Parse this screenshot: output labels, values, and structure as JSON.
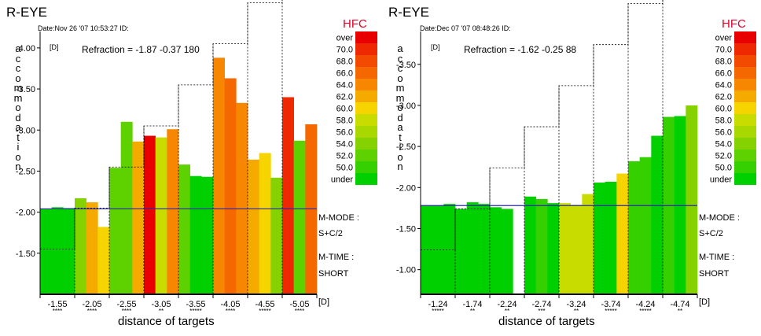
{
  "hfc_title": "HFC",
  "hfc_legend": [
    {
      "label": "over",
      "color": "#e80000"
    },
    {
      "label": "70.0",
      "color": "#ee2800"
    },
    {
      "label": "68.0",
      "color": "#f24a00"
    },
    {
      "label": "66.0",
      "color": "#f56800"
    },
    {
      "label": "64.0",
      "color": "#f78600"
    },
    {
      "label": "62.0",
      "color": "#f5aa00"
    },
    {
      "label": "60.0",
      "color": "#f5d400"
    },
    {
      "label": "58.0",
      "color": "#c8dc00"
    },
    {
      "label": "56.0",
      "color": "#a8d800"
    },
    {
      "label": "54.0",
      "color": "#86d200"
    },
    {
      "label": "52.0",
      "color": "#5ed200"
    },
    {
      "label": "50.0",
      "color": "#34d000"
    },
    {
      "label": "under",
      "color": "#00d000"
    }
  ],
  "side_labels": [
    "M-MODE :",
    "S+C/2",
    "M-TIME :",
    "SHORT"
  ],
  "charts": [
    {
      "eye": "R-EYE",
      "date": "Date:Nov 26 '07 10:53:27   ID:",
      "ylabel": "accommodation",
      "yunit": "[D]",
      "xunit": "[D]",
      "xlabel": "distance of targets",
      "refraction": "Refraction = -1.87 -0.37 180",
      "chart_data": {
        "type": "bar",
        "title": "R-EYE",
        "ylim": [
          -1.0,
          -4.2
        ],
        "yticks": [
          "-1.50",
          "-2.00",
          "-2.50",
          "-3.00",
          "-3.50",
          "-4.00"
        ],
        "categories": [
          "-1.55",
          "-2.05",
          "-2.55",
          "-3.05",
          "-3.55",
          "-4.05",
          "-4.55",
          "-5.05"
        ],
        "stars": [
          "****",
          "****",
          "****",
          "**",
          "*****",
          "****",
          "*****",
          "****"
        ],
        "target_steps": [
          -1.55,
          -2.05,
          -2.55,
          -3.05,
          -3.55,
          -4.05,
          -4.55,
          -5.05
        ],
        "reference_line": -2.04,
        "bars": [
          {
            "v": -2.04,
            "c": "#00d000"
          },
          {
            "v": -2.06,
            "c": "#00d000"
          },
          {
            "v": -2.05,
            "c": "#00d000"
          },
          {
            "v": -2.17,
            "c": "#86d200"
          },
          {
            "v": -2.12,
            "c": "#f5aa00"
          },
          {
            "v": -1.82,
            "c": "#f5d400"
          },
          {
            "v": -2.54,
            "c": "#5ed200"
          },
          {
            "v": -3.1,
            "c": "#5ed200"
          },
          {
            "v": -2.86,
            "c": "#f5aa00"
          },
          {
            "v": -2.93,
            "c": "#e80000"
          },
          {
            "v": -2.91,
            "c": "#c8dc00"
          },
          {
            "v": -3.01,
            "c": "#f78600"
          },
          {
            "v": -2.58,
            "c": "#5ed200"
          },
          {
            "v": -2.44,
            "c": "#00d000"
          },
          {
            "v": -2.43,
            "c": "#00d000"
          },
          {
            "v": -3.88,
            "c": "#f78600"
          },
          {
            "v": -3.63,
            "c": "#f56800"
          },
          {
            "v": -3.33,
            "c": "#f78600"
          },
          {
            "v": -2.64,
            "c": "#f5aa00"
          },
          {
            "v": -2.72,
            "c": "#f5d400"
          },
          {
            "v": -2.42,
            "c": "#86d200"
          },
          {
            "v": -3.4,
            "c": "#ee2800"
          },
          {
            "v": -2.87,
            "c": "#5ed200"
          },
          {
            "v": -3.07,
            "c": "#f56800"
          }
        ]
      }
    },
    {
      "eye": "R-EYE",
      "date": "Date:Dec 07 '07 08:48:26   ID:",
      "ylabel": "accommodation",
      "yunit": "[D]",
      "xunit": "[D]",
      "xlabel": "distance of targets",
      "refraction": "Refraction = -1.62 -0.25  88",
      "chart_data": {
        "type": "bar",
        "title": "R-EYE",
        "ylim": [
          -0.7,
          -3.9
        ],
        "yticks": [
          "-1.00",
          "-1.50",
          "-2.00",
          "-2.50",
          "-3.00",
          "-3.50"
        ],
        "categories": [
          "-1.24",
          "-1.74",
          "-2.24",
          "-2.74",
          "-3.24",
          "-3.74",
          "-4.24",
          "-4.74"
        ],
        "stars": [
          "*****",
          "**",
          "**",
          "***",
          "**",
          "*****",
          "*****",
          "**"
        ],
        "target_steps": [
          -1.24,
          -1.74,
          -2.24,
          -2.74,
          -3.24,
          -3.74,
          -4.24,
          -4.74
        ],
        "reference_line": -1.78,
        "bars": [
          {
            "v": -1.78,
            "c": "#00d000"
          },
          {
            "v": -1.78,
            "c": "#00d000"
          },
          {
            "v": -1.8,
            "c": "#00d000"
          },
          {
            "v": -1.74,
            "c": "#00d000"
          },
          {
            "v": -1.82,
            "c": "#00d000"
          },
          {
            "v": -1.8,
            "c": "#00d000"
          },
          {
            "v": -1.76,
            "c": "#00d000"
          },
          {
            "v": -1.74,
            "c": "#00d000"
          },
          {
            "v": null,
            "c": "#ffffff"
          },
          {
            "v": -1.89,
            "c": "#00d000"
          },
          {
            "v": -1.86,
            "c": "#34d000"
          },
          {
            "v": -1.81,
            "c": "#00d000"
          },
          {
            "v": -1.81,
            "c": "#c8dc00"
          },
          {
            "v": -1.79,
            "c": "#c8dc00"
          },
          {
            "v": -1.92,
            "c": "#c8dc00"
          },
          {
            "v": -2.06,
            "c": "#00d000"
          },
          {
            "v": -2.07,
            "c": "#00d000"
          },
          {
            "v": -2.17,
            "c": "#f5d400"
          },
          {
            "v": -2.32,
            "c": "#34d000"
          },
          {
            "v": -2.37,
            "c": "#34d000"
          },
          {
            "v": -2.63,
            "c": "#00d000"
          },
          {
            "v": -2.86,
            "c": "#34d000"
          },
          {
            "v": -2.87,
            "c": "#00d000"
          },
          {
            "v": -3.0,
            "c": "#86d200"
          }
        ]
      }
    }
  ]
}
